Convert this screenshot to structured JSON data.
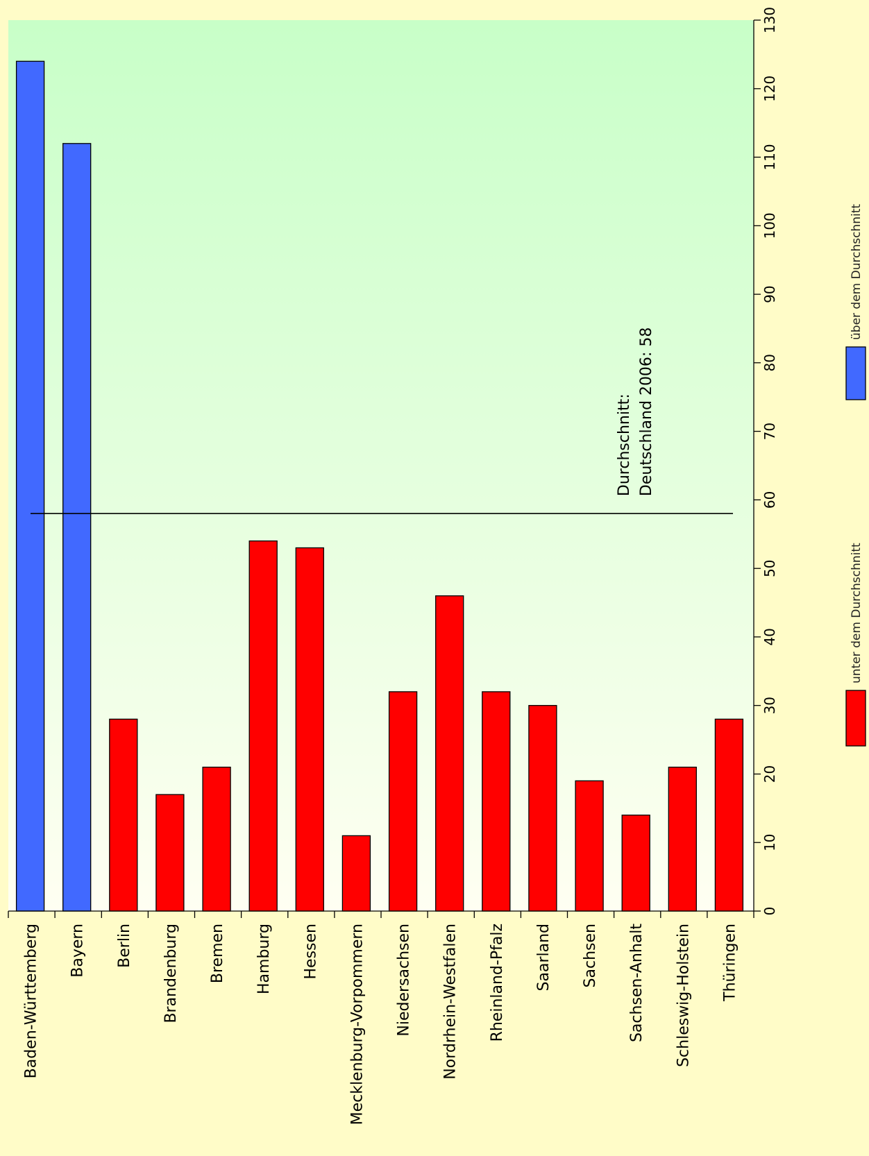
{
  "chart_data": {
    "type": "bar",
    "orientation": "rotated-90-clockwise",
    "categories": [
      "Baden-Württemberg",
      "Bayern",
      "Berlin",
      "Brandenburg",
      "Bremen",
      "Hamburg",
      "Hessen",
      "Mecklenburg-Vorpommern",
      "Niedersachsen",
      "Nordrhein-Westfalen",
      "Rheinland-Pfalz",
      "Saarland",
      "Sachsen",
      "Sachsen-Anhalt",
      "Schleswig-Holstein",
      "Thüringen"
    ],
    "values": [
      124,
      112,
      28,
      17,
      21,
      54,
      53,
      11,
      32,
      46,
      32,
      30,
      19,
      14,
      21,
      28
    ],
    "ylim": [
      0,
      130
    ],
    "yticks": [
      0,
      10,
      20,
      30,
      40,
      50,
      60,
      70,
      80,
      90,
      100,
      110,
      120,
      130
    ],
    "average": {
      "value": 58,
      "label_line1": "Durchschnitt:",
      "label_line2": "Deutschland 2006: 58"
    },
    "legend": [
      {
        "name": "über dem Durchschnitt",
        "color": "#4169ff"
      },
      {
        "name": "unter dem Durchschnitt",
        "color": "#ff0000"
      }
    ],
    "legend_position": "right",
    "colors": {
      "above": "#4169ff",
      "below": "#ff0000"
    },
    "grid": false,
    "title": "",
    "xlabel": "",
    "ylabel": ""
  }
}
